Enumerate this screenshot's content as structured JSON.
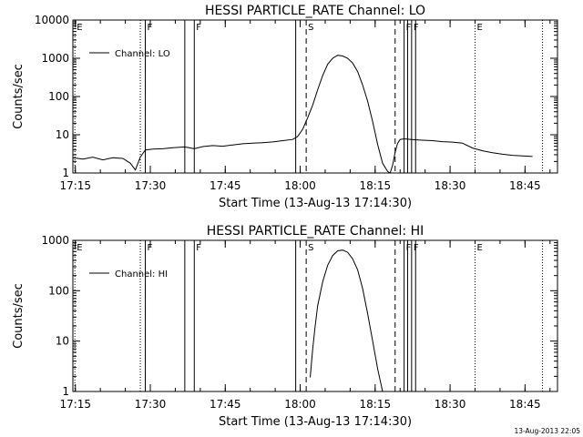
{
  "footer": {
    "timestamp": "13-Aug-2013 22:05"
  },
  "chart_data": [
    {
      "type": "line",
      "title": "HESSI PARTICLE_RATE Channel: LO",
      "xlabel": "Start Time (13-Aug-13 17:14:30)",
      "ylabel": "Counts/sec",
      "yscale": "log",
      "ylim": [
        1,
        10000
      ],
      "y_tick_labels": [
        "1",
        "10",
        "100",
        "1000",
        "10000"
      ],
      "y_ticks": [
        1,
        10,
        100,
        1000,
        10000
      ],
      "xlim_minutes": [
        0,
        97
      ],
      "x_tick_labels": [
        "17:15",
        "17:30",
        "17:45",
        "18:00",
        "18:15",
        "18:30",
        "18:45"
      ],
      "x_ticks_minutes": [
        0.5,
        15.5,
        30.5,
        45.5,
        60.5,
        75.5,
        90.5
      ],
      "legend": {
        "label": "Channel: LO",
        "placement": "top-left"
      },
      "markers": [
        {
          "t": 0.4,
          "label": "E",
          "style": "dotted"
        },
        {
          "t": 13.5,
          "label": "",
          "style": "dotted"
        },
        {
          "t": 14.5,
          "label": "F",
          "style": "solid"
        },
        {
          "t": 22.4,
          "label": "",
          "style": "solid"
        },
        {
          "t": 24.3,
          "label": "F",
          "style": "solid"
        },
        {
          "t": 44.6,
          "label": "",
          "style": "solid"
        },
        {
          "t": 46.7,
          "label": "S",
          "style": "dashed"
        },
        {
          "t": 64.5,
          "label": "",
          "style": "dashed"
        },
        {
          "t": 66.3,
          "label": "F",
          "style": "solid"
        },
        {
          "t": 67.0,
          "label": "",
          "style": "solid"
        },
        {
          "t": 67.8,
          "label": "F",
          "style": "solid"
        },
        {
          "t": 68.6,
          "label": "",
          "style": "solid"
        },
        {
          "t": 80.5,
          "label": "E",
          "style": "dotted"
        },
        {
          "t": 94.0,
          "label": "",
          "style": "dotted"
        }
      ],
      "series": [
        {
          "name": "Channel: LO",
          "x": [
            0,
            2,
            4,
            6,
            8,
            10,
            11.5,
            12.5,
            13.5,
            14.5,
            16,
            18,
            20,
            22.4,
            24.3,
            26,
            28,
            30,
            32,
            34,
            36,
            38,
            40,
            42,
            44,
            45,
            46,
            47,
            48,
            49,
            50,
            51,
            52,
            53,
            54,
            55,
            56,
            57,
            58,
            59,
            60,
            61,
            62,
            63,
            63.5,
            64,
            64.5,
            65,
            65.5,
            66.3,
            67.8,
            70,
            72,
            74,
            76,
            78,
            80,
            82,
            84,
            86,
            88,
            90,
            92
          ],
          "y": [
            2.5,
            2.3,
            2.6,
            2.2,
            2.5,
            2.4,
            1.8,
            1.2,
            2.6,
            4.0,
            4.2,
            4.3,
            4.6,
            4.8,
            4.3,
            4.9,
            5.2,
            5.0,
            5.4,
            5.8,
            6.0,
            6.2,
            6.5,
            7.0,
            7.5,
            9.0,
            14,
            28,
            60,
            150,
            350,
            700,
            1000,
            1200,
            1150,
            1000,
            750,
            450,
            200,
            75,
            22,
            5.5,
            1.8,
            1.1,
            1.0,
            1.6,
            3.5,
            6.0,
            7.5,
            7.8,
            7.5,
            7.2,
            7.0,
            6.6,
            6.4,
            6.0,
            4.5,
            3.8,
            3.4,
            3.1,
            2.9,
            2.8,
            2.7
          ]
        }
      ]
    },
    {
      "type": "line",
      "title": "HESSI PARTICLE_RATE Channel: HI",
      "xlabel": "Start Time (13-Aug-13 17:14:30)",
      "ylabel": "Counts/sec",
      "yscale": "log",
      "ylim": [
        1,
        1000
      ],
      "y_tick_labels": [
        "1",
        "10",
        "100",
        "1000"
      ],
      "y_ticks": [
        1,
        10,
        100,
        1000
      ],
      "xlim_minutes": [
        0,
        97
      ],
      "x_tick_labels": [
        "17:15",
        "17:30",
        "17:45",
        "18:00",
        "18:15",
        "18:30",
        "18:45"
      ],
      "x_ticks_minutes": [
        0.5,
        15.5,
        30.5,
        45.5,
        60.5,
        75.5,
        90.5
      ],
      "legend": {
        "label": "Channel: HI",
        "placement": "top-left"
      },
      "markers": [
        {
          "t": 0.4,
          "label": "E",
          "style": "dotted"
        },
        {
          "t": 13.5,
          "label": "",
          "style": "dotted"
        },
        {
          "t": 14.5,
          "label": "F",
          "style": "solid"
        },
        {
          "t": 22.4,
          "label": "",
          "style": "solid"
        },
        {
          "t": 24.3,
          "label": "F",
          "style": "solid"
        },
        {
          "t": 44.6,
          "label": "",
          "style": "solid"
        },
        {
          "t": 46.7,
          "label": "S",
          "style": "dashed"
        },
        {
          "t": 64.5,
          "label": "",
          "style": "dashed"
        },
        {
          "t": 66.3,
          "label": "F",
          "style": "solid"
        },
        {
          "t": 67.0,
          "label": "",
          "style": "solid"
        },
        {
          "t": 67.8,
          "label": "F",
          "style": "solid"
        },
        {
          "t": 68.6,
          "label": "",
          "style": "solid"
        },
        {
          "t": 80.5,
          "label": "E",
          "style": "dotted"
        },
        {
          "t": 94.0,
          "label": "",
          "style": "dotted"
        }
      ],
      "series": [
        {
          "name": "Channel: HI",
          "x": [
            47.5,
            48,
            48.5,
            49,
            50,
            51,
            52,
            53,
            54,
            55,
            56,
            57,
            58,
            59,
            60,
            61,
            62
          ],
          "y": [
            1.9,
            7,
            20,
            50,
            150,
            320,
            500,
            620,
            640,
            580,
            430,
            260,
            110,
            35,
            10,
            2.8,
            1.0
          ]
        }
      ]
    }
  ]
}
